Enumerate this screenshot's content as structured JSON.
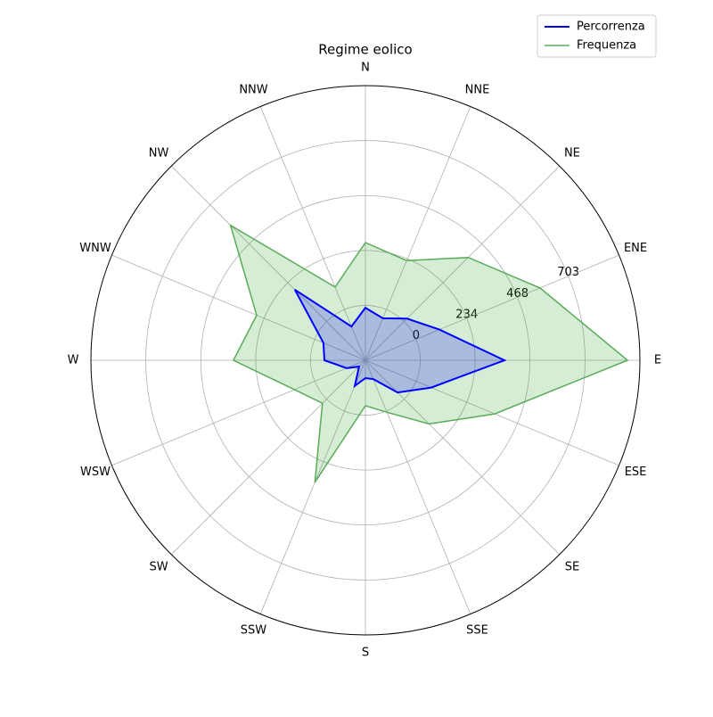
{
  "chart_data": {
    "type": "radar",
    "title": "Regime eolico",
    "categories": [
      "N",
      "NNE",
      "NE",
      "ENE",
      "E",
      "ESE",
      "SE",
      "SSE",
      "S",
      "SSW",
      "SW",
      "WSW",
      "W",
      "WNW",
      "NW",
      "NNW"
    ],
    "series": [
      {
        "name": "Percorrenza",
        "color": "#0000ff",
        "fill": "#0000ff",
        "values": [
          -10,
          -40,
          17,
          108,
          359,
          70,
          -40,
          -147,
          -158,
          -116,
          -196,
          -147,
          -59,
          -40,
          192,
          -78
        ]
      },
      {
        "name": "Frequenza",
        "color": "#5aab5a",
        "fill": "#2ca02c",
        "values": [
          268,
          226,
          386,
          572,
          884,
          363,
          150,
          6,
          -40,
          329,
          25,
          93,
          329,
          268,
          580,
          104
        ]
      }
    ],
    "ylim": [
      -234,
      937
    ],
    "yticks": [
      0,
      234,
      468,
      703
    ],
    "grid": true,
    "legend": "upper right"
  }
}
